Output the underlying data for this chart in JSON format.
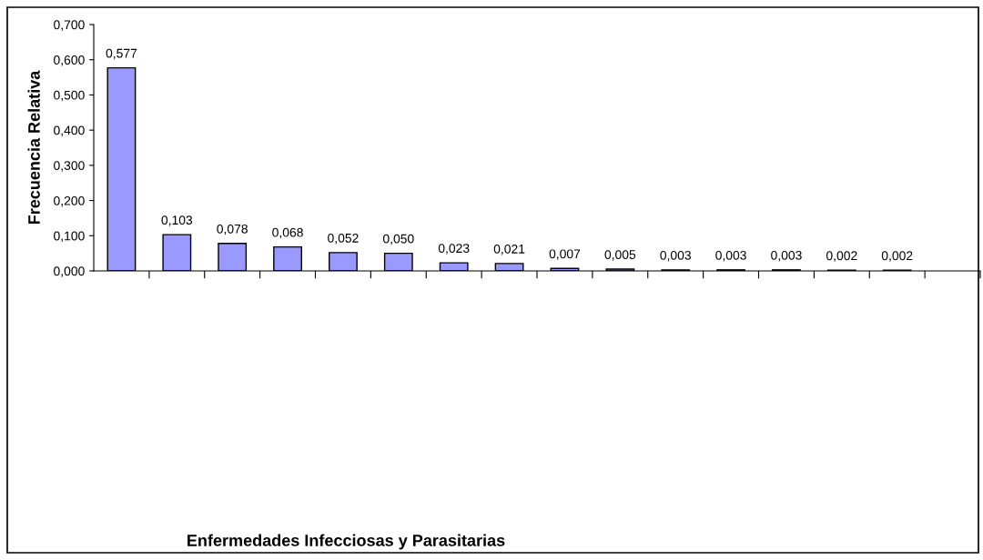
{
  "chart_data": {
    "type": "bar",
    "annotations": [
      "Enfermedades Infecciosas y Parasitarias"
    ],
    "ylabel": "Frecuencia Relativa",
    "categories": [
      null,
      null,
      null,
      null,
      null,
      null,
      null,
      null,
      null,
      null,
      null,
      null,
      null,
      null,
      null,
      null
    ],
    "values": [
      0.577,
      0.103,
      0.078,
      0.068,
      0.052,
      0.05,
      0.023,
      0.021,
      0.007,
      0.005,
      0.003,
      0.003,
      0.003,
      0.002,
      0.002,
      null
    ],
    "value_labels": [
      "0,577",
      "0,103",
      "0,078",
      "0,068",
      "0,052",
      "0,050",
      "0,023",
      "0,021",
      "0,007",
      "0,005",
      "0,003",
      "0,003",
      "0,003",
      "0,002",
      "0,002",
      null
    ],
    "color": "#9999ff",
    "ylim": [
      0,
      0.7
    ],
    "yticks": [
      {
        "value": 0,
        "label": "0,000"
      },
      {
        "value": 0.1,
        "label": "0,100"
      },
      {
        "value": 0.2,
        "label": "0,200"
      },
      {
        "value": 0.3,
        "label": "0,300"
      },
      {
        "value": 0.4,
        "label": "0,400"
      },
      {
        "value": 0.5,
        "label": "0,500"
      },
      {
        "value": 0.6,
        "label": "0,600"
      },
      {
        "value": 0.7,
        "label": "0,700"
      }
    ],
    "grid": false,
    "legend": false
  }
}
